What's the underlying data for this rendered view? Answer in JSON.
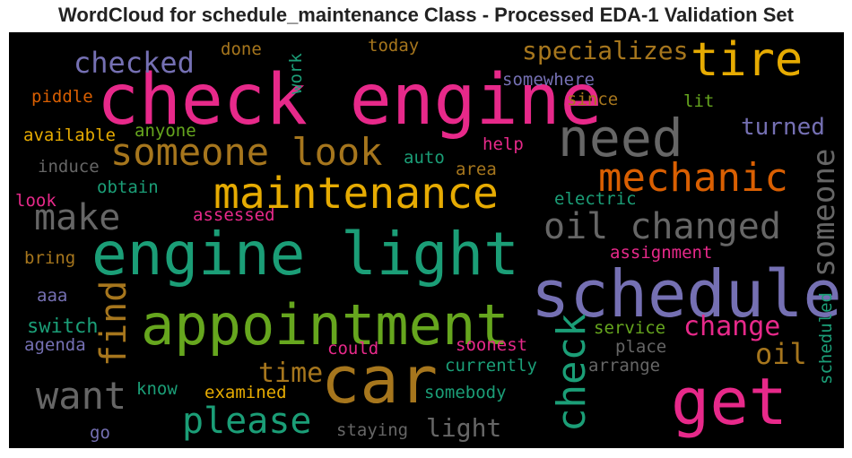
{
  "chart_data": {
    "type": "wordcloud",
    "title": "WordCloud for schedule_maintenance Class - Processed EDA-1 Validation Set",
    "background": "#000000",
    "words": [
      {
        "text": "check engine",
        "color": "#e7298a",
        "orientation": "horizontal"
      },
      {
        "text": "engine light",
        "color": "#1b9e77",
        "orientation": "horizontal"
      },
      {
        "text": "appointment",
        "color": "#66a61e",
        "orientation": "horizontal"
      },
      {
        "text": "schedule",
        "color": "#7570b3",
        "orientation": "horizontal"
      },
      {
        "text": "car",
        "color": "#a6761d",
        "orientation": "horizontal"
      },
      {
        "text": "get",
        "color": "#e7298a",
        "orientation": "horizontal"
      },
      {
        "text": "need",
        "color": "#666666",
        "orientation": "horizontal"
      },
      {
        "text": "maintenance",
        "color": "#e6ab02",
        "orientation": "horizontal"
      },
      {
        "text": "tire",
        "color": "#e6ab02",
        "orientation": "horizontal"
      },
      {
        "text": "someone look",
        "color": "#a6761d",
        "orientation": "horizontal"
      },
      {
        "text": "mechanic",
        "color": "#d95f02",
        "orientation": "horizontal"
      },
      {
        "text": "oil changed",
        "color": "#666666",
        "orientation": "horizontal"
      },
      {
        "text": "make",
        "color": "#666666",
        "orientation": "horizontal"
      },
      {
        "text": "want",
        "color": "#666666",
        "orientation": "horizontal"
      },
      {
        "text": "please",
        "color": "#1b9e77",
        "orientation": "horizontal"
      },
      {
        "text": "check",
        "color": "#1b9e77",
        "orientation": "vertical"
      },
      {
        "text": "find",
        "color": "#a6761d",
        "orientation": "vertical"
      },
      {
        "text": "someone",
        "color": "#666666",
        "orientation": "vertical"
      },
      {
        "text": "checked",
        "color": "#7570b3",
        "orientation": "horizontal"
      },
      {
        "text": "specializes",
        "color": "#a6761d",
        "orientation": "horizontal"
      },
      {
        "text": "change",
        "color": "#e7298a",
        "orientation": "horizontal"
      },
      {
        "text": "oil",
        "color": "#a6761d",
        "orientation": "horizontal"
      },
      {
        "text": "time",
        "color": "#a6761d",
        "orientation": "horizontal"
      },
      {
        "text": "turned",
        "color": "#7570b3",
        "orientation": "horizontal"
      },
      {
        "text": "switch",
        "color": "#1b9e77",
        "orientation": "horizontal"
      },
      {
        "text": "light",
        "color": "#666666",
        "orientation": "horizontal"
      },
      {
        "text": "somewhere",
        "color": "#7570b3",
        "orientation": "horizontal"
      },
      {
        "text": "since",
        "color": "#a6761d",
        "orientation": "horizontal"
      },
      {
        "text": "done",
        "color": "#a6761d",
        "orientation": "horizontal"
      },
      {
        "text": "today",
        "color": "#a6761d",
        "orientation": "horizontal"
      },
      {
        "text": "work",
        "color": "#1b9e77",
        "orientation": "vertical"
      },
      {
        "text": "piddle",
        "color": "#d95f02",
        "orientation": "horizontal"
      },
      {
        "text": "lit",
        "color": "#66a61e",
        "orientation": "horizontal"
      },
      {
        "text": "available",
        "color": "#e6ab02",
        "orientation": "horizontal"
      },
      {
        "text": "anyone",
        "color": "#66a61e",
        "orientation": "horizontal"
      },
      {
        "text": "help",
        "color": "#e7298a",
        "orientation": "horizontal"
      },
      {
        "text": "induce",
        "color": "#666666",
        "orientation": "horizontal"
      },
      {
        "text": "auto",
        "color": "#1b9e77",
        "orientation": "horizontal"
      },
      {
        "text": "area",
        "color": "#a6761d",
        "orientation": "horizontal"
      },
      {
        "text": "obtain",
        "color": "#1b9e77",
        "orientation": "horizontal"
      },
      {
        "text": "electric",
        "color": "#1b9e77",
        "orientation": "horizontal"
      },
      {
        "text": "look",
        "color": "#e7298a",
        "orientation": "horizontal"
      },
      {
        "text": "assessed",
        "color": "#e7298a",
        "orientation": "horizontal"
      },
      {
        "text": "bring",
        "color": "#a6761d",
        "orientation": "horizontal"
      },
      {
        "text": "assignment",
        "color": "#e7298a",
        "orientation": "horizontal"
      },
      {
        "text": "aaa",
        "color": "#7570b3",
        "orientation": "horizontal"
      },
      {
        "text": "agenda",
        "color": "#7570b3",
        "orientation": "horizontal"
      },
      {
        "text": "service",
        "color": "#66a61e",
        "orientation": "horizontal"
      },
      {
        "text": "scheduled",
        "color": "#1b9e77",
        "orientation": "vertical"
      },
      {
        "text": "could",
        "color": "#e7298a",
        "orientation": "horizontal"
      },
      {
        "text": "soonest",
        "color": "#e7298a",
        "orientation": "horizontal"
      },
      {
        "text": "place",
        "color": "#666666",
        "orientation": "horizontal"
      },
      {
        "text": "currently",
        "color": "#1b9e77",
        "orientation": "horizontal"
      },
      {
        "text": "arrange",
        "color": "#666666",
        "orientation": "horizontal"
      },
      {
        "text": "know",
        "color": "#1b9e77",
        "orientation": "horizontal"
      },
      {
        "text": "examined",
        "color": "#e6ab02",
        "orientation": "horizontal"
      },
      {
        "text": "somebody",
        "color": "#1b9e77",
        "orientation": "horizontal"
      },
      {
        "text": "go",
        "color": "#7570b3",
        "orientation": "horizontal"
      },
      {
        "text": "staying",
        "color": "#666666",
        "orientation": "horizontal"
      }
    ]
  }
}
